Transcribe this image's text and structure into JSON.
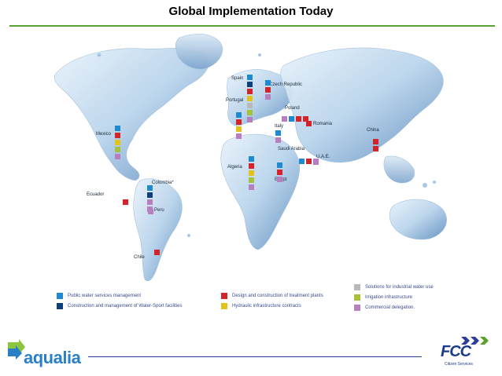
{
  "title": "Global Implementation Today",
  "colors": {
    "public_water": "#1f8ad0",
    "construction_sport": "#0e3f7a",
    "design_treatment": "#d4242a",
    "hydraulic": "#e3c21b",
    "industrial": "#b9b9b9",
    "irrigation": "#a6c23a",
    "commercial": "#b77fc0",
    "rule_green": "#5aa02c",
    "footer_blue": "#2b3f9a"
  },
  "countries": [
    {
      "name": "Mexico",
      "squares": [
        "public_water",
        "design_treatment",
        "hydraulic",
        "irrigation",
        "commercial"
      ]
    },
    {
      "name": "Ecuador",
      "squares": [
        "design_treatment"
      ]
    },
    {
      "name": "Colombia*",
      "squares": [
        "public_water",
        "construction_sport",
        "commercial",
        "commercial"
      ]
    },
    {
      "name": "Peru",
      "squares": [
        "commercial"
      ]
    },
    {
      "name": "Chile",
      "squares": [
        "design_treatment"
      ]
    },
    {
      "name": "Spain",
      "squares": [
        "public_water",
        "construction_sport",
        "design_treatment",
        "hydraulic",
        "industrial",
        "irrigation",
        "commercial"
      ]
    },
    {
      "name": "Portugal",
      "squares": [
        "public_water",
        "design_treatment",
        "hydraulic",
        "commercial"
      ]
    },
    {
      "name": "Czech Republic",
      "squares": [
        "public_water",
        "design_treatment",
        "commercial"
      ]
    },
    {
      "name": "Poland",
      "squares": [
        "commercial",
        "public_water",
        "design_treatment",
        "design_treatment"
      ]
    },
    {
      "name": "Italy",
      "squares": [
        "public_water",
        "commercial"
      ]
    },
    {
      "name": "Romania",
      "squares": [
        "design_treatment"
      ]
    },
    {
      "name": "Algeria",
      "squares": [
        "public_water",
        "design_treatment",
        "hydraulic",
        "irrigation",
        "commercial"
      ]
    },
    {
      "name": "Egypt",
      "squares": [
        "public_water",
        "design_treatment",
        "commercial"
      ]
    },
    {
      "name": "Saudi Arabia",
      "squares": [
        "public_water",
        "design_treatment",
        "commercial"
      ]
    },
    {
      "name": "U.A.E.",
      "squares": [
        "commercial"
      ]
    },
    {
      "name": "China",
      "squares": [
        "design_treatment",
        "design_treatment"
      ]
    }
  ],
  "legend": [
    {
      "key": "public_water",
      "label": "Public water services management"
    },
    {
      "key": "construction_sport",
      "label": "Construction and management of Water-Sport facilities"
    },
    {
      "key": "design_treatment",
      "label": "Design and construction of treatment plants"
    },
    {
      "key": "hydraulic",
      "label": "Hydraulic infrastructure contracts"
    },
    {
      "key": "industrial",
      "label": "Solutions for industrial water use"
    },
    {
      "key": "irrigation",
      "label": "Irrigation infrastructure"
    },
    {
      "key": "commercial",
      "label": "Commercial delegation."
    }
  ],
  "logos": {
    "aqualia": "aqualia",
    "fcc": "FCC",
    "fcc_sub": "Citizen Services"
  }
}
